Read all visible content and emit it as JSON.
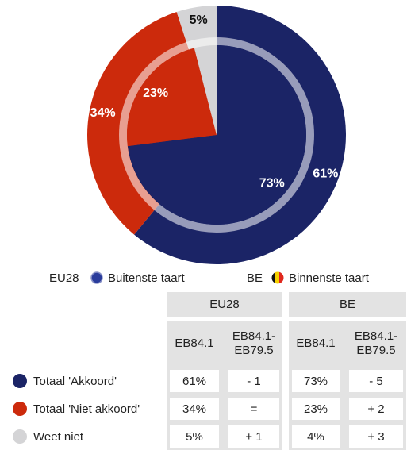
{
  "chart_data": {
    "type": "pie",
    "categories": [
      "Totaal 'Akkoord'",
      "Totaal 'Niet akkoord'",
      "Weet niet"
    ],
    "colors": [
      "#1b2466",
      "#cc2a0c",
      "#d4d4d6"
    ],
    "series": [
      {
        "name": "EU28",
        "label": "Buitenste taart",
        "values": [
          61,
          34,
          5
        ],
        "value_labels": [
          "61%",
          "34%",
          "5%"
        ]
      },
      {
        "name": "BE",
        "label": "Binnenste taart",
        "values": [
          73,
          23,
          4
        ],
        "value_labels": [
          "73%",
          "23%",
          null
        ]
      }
    ]
  },
  "table": {
    "groups": [
      "EU28",
      "BE"
    ],
    "columns": [
      [
        "EB84.1"
      ],
      [
        "EB84.1-",
        "EB79.5"
      ],
      [
        "EB84.1"
      ],
      [
        "EB84.1-",
        "EB79.5"
      ]
    ],
    "rows": [
      [
        "61%",
        "- 1",
        "73%",
        "- 5"
      ],
      [
        "34%",
        "=",
        "23%",
        "+ 2"
      ],
      [
        "5%",
        "+ 1",
        "4%",
        "+ 3"
      ]
    ]
  }
}
